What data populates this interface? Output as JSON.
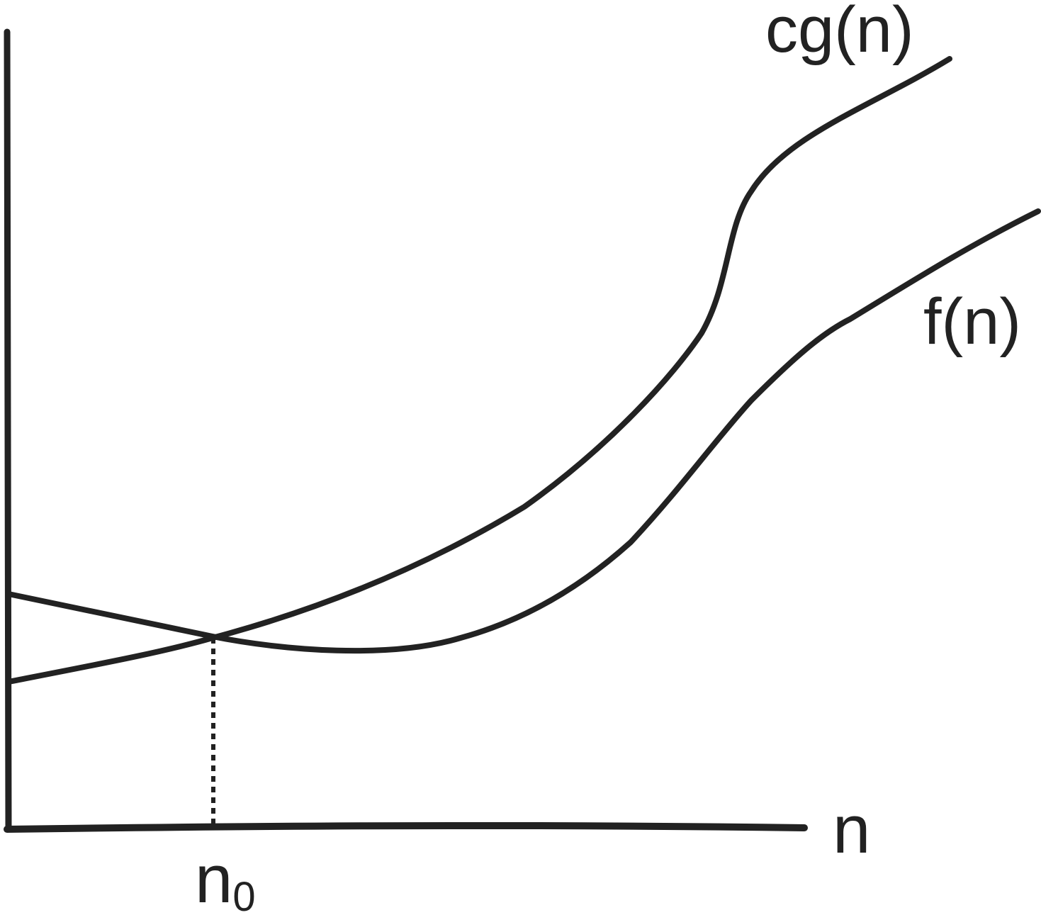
{
  "diagram": {
    "curves": [
      {
        "name": "upper-bound-curve",
        "label": "cg(n)"
      },
      {
        "name": "function-curve",
        "label": "f(n)"
      }
    ],
    "x_axis_label": "n",
    "threshold": {
      "base": "n",
      "subscript": "0"
    },
    "colors": {
      "ink": "#222222",
      "background": "#ffffff"
    }
  }
}
